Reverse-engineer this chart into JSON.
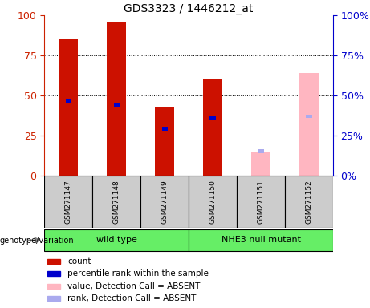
{
  "title": "GDS3323 / 1446212_at",
  "samples": [
    "GSM271147",
    "GSM271148",
    "GSM271149",
    "GSM271150",
    "GSM271151",
    "GSM271152"
  ],
  "count_values": [
    85,
    96,
    43,
    60,
    null,
    null
  ],
  "rank_values": [
    47,
    44,
    29,
    36,
    null,
    null
  ],
  "absent_count_values": [
    null,
    null,
    null,
    null,
    15,
    64
  ],
  "absent_rank_values": [
    null,
    null,
    null,
    null,
    15,
    37
  ],
  "group_info": [
    {
      "start": 0,
      "end": 2,
      "label": "wild type"
    },
    {
      "start": 3,
      "end": 5,
      "label": "NHE3 null mutant"
    }
  ],
  "bar_width": 0.4,
  "rank_bar_width": 0.12,
  "bar_color_present": "#CC1100",
  "rank_color_present": "#0000CC",
  "bar_color_absent": "#FFB6C1",
  "rank_color_absent": "#AAAAEE",
  "ylim": [
    0,
    100
  ],
  "yticks": [
    0,
    25,
    50,
    75,
    100
  ],
  "left_tick_color": "#CC2200",
  "right_tick_color": "#0000CC",
  "sample_box_color": "#CCCCCC",
  "group_box_color": "#66EE66",
  "genotype_label": "genotype/variation",
  "legend_items": [
    {
      "label": "count",
      "color": "#CC1100"
    },
    {
      "label": "percentile rank within the sample",
      "color": "#0000CC"
    },
    {
      "label": "value, Detection Call = ABSENT",
      "color": "#FFB6C1"
    },
    {
      "label": "rank, Detection Call = ABSENT",
      "color": "#AAAAEE"
    }
  ]
}
